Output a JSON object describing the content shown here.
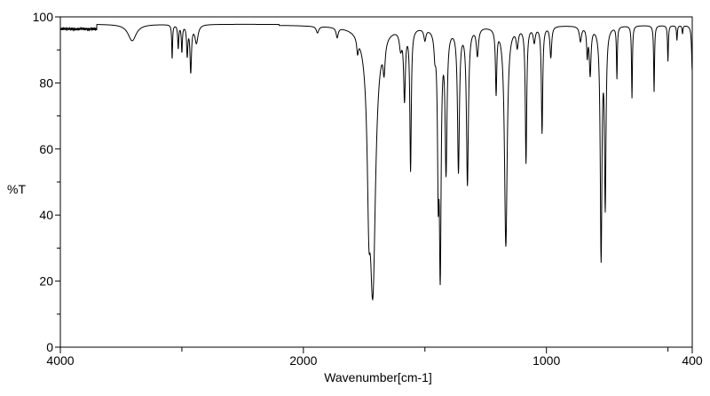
{
  "chart_data": {
    "type": "line",
    "title": "",
    "xlabel": "Wavenumber[cm-1]",
    "ylabel": "%T",
    "xlim": [
      4000,
      400
    ],
    "ylim": [
      0,
      100
    ],
    "x_scale_break": 2000,
    "x_ticks": [
      {
        "value": 4000,
        "label": "4000"
      },
      {
        "value": 3000,
        "label": ""
      },
      {
        "value": 2000,
        "label": "2000"
      },
      {
        "value": 1500,
        "label": ""
      },
      {
        "value": 1000,
        "label": "1000"
      },
      {
        "value": 500,
        "label": ""
      },
      {
        "value": 400,
        "label": "400"
      }
    ],
    "y_ticks": [
      {
        "value": 0,
        "label": "0"
      },
      {
        "value": 10,
        "label": ""
      },
      {
        "value": 20,
        "label": "20"
      },
      {
        "value": 30,
        "label": ""
      },
      {
        "value": 40,
        "label": "40"
      },
      {
        "value": 50,
        "label": ""
      },
      {
        "value": 60,
        "label": "60"
      },
      {
        "value": 70,
        "label": ""
      },
      {
        "value": 80,
        "label": "80"
      },
      {
        "value": 90,
        "label": ""
      },
      {
        "value": 100,
        "label": "100"
      }
    ],
    "baseline_T": 97.5,
    "series": [
      {
        "name": "IR spectrum",
        "color": "#000000",
        "peaks": [
          {
            "wn": 3409,
            "t": 92.5,
            "w": 40
          },
          {
            "wn": 3080,
            "t": 87.4,
            "w": 4
          },
          {
            "wn": 3030,
            "t": 90.5,
            "w": 5
          },
          {
            "wn": 3000,
            "t": 89.5,
            "w": 5
          },
          {
            "wn": 2956,
            "t": 88.5,
            "w": 6
          },
          {
            "wn": 2927,
            "t": 83.5,
            "w": 7
          },
          {
            "wn": 2880,
            "t": 92,
            "w": 15
          },
          {
            "wn": 1942,
            "t": 95.5,
            "w": 6
          },
          {
            "wn": 1861,
            "t": 94.5,
            "w": 5
          },
          {
            "wn": 1777,
            "t": 93,
            "w": 4
          },
          {
            "wn": 1730,
            "t": 47,
            "w": 6
          },
          {
            "wn": 1715,
            "t": 16,
            "w": 9
          },
          {
            "wn": 1668,
            "t": 88,
            "w": 5
          },
          {
            "wn": 1600,
            "t": 92,
            "w": 6
          },
          {
            "wn": 1584,
            "t": 76,
            "w": 4
          },
          {
            "wn": 1559,
            "t": 54,
            "w": 3
          },
          {
            "wn": 1500,
            "t": 94,
            "w": 5
          },
          {
            "wn": 1459,
            "t": 91.6,
            "w": 4
          },
          {
            "wn": 1445,
            "t": 48.6,
            "w": 3
          },
          {
            "wn": 1437,
            "t": 21,
            "w": 3
          },
          {
            "wn": 1413,
            "t": 53.5,
            "w": 4
          },
          {
            "wn": 1362,
            "t": 53.5,
            "w": 4
          },
          {
            "wn": 1325,
            "t": 49.5,
            "w": 4
          },
          {
            "wn": 1284,
            "t": 89,
            "w": 5
          },
          {
            "wn": 1207,
            "t": 77.7,
            "w": 3
          },
          {
            "wn": 1167,
            "t": 30.6,
            "w": 5
          },
          {
            "wn": 1120,
            "t": 92,
            "w": 5
          },
          {
            "wn": 1084,
            "t": 56,
            "w": 3
          },
          {
            "wn": 1050,
            "t": 93,
            "w": 5
          },
          {
            "wn": 1018,
            "t": 65,
            "w": 3
          },
          {
            "wn": 982,
            "t": 88,
            "w": 4
          },
          {
            "wn": 860,
            "t": 93,
            "w": 5
          },
          {
            "wn": 832,
            "t": 89,
            "w": 3
          },
          {
            "wn": 820,
            "t": 83,
            "w": 4
          },
          {
            "wn": 775,
            "t": 26.3,
            "w": 3
          },
          {
            "wn": 758,
            "t": 42.5,
            "w": 3
          },
          {
            "wn": 710,
            "t": 81.7,
            "w": 2
          },
          {
            "wn": 648,
            "t": 75.5,
            "w": 2
          },
          {
            "wn": 557,
            "t": 77.4,
            "w": 2
          },
          {
            "wn": 500,
            "t": 86.6,
            "w": 2
          },
          {
            "wn": 463,
            "t": 93,
            "w": 2
          },
          {
            "wn": 440,
            "t": 95,
            "w": 2
          },
          {
            "wn": 400,
            "t": 83.6,
            "w": 3
          }
        ]
      }
    ]
  }
}
